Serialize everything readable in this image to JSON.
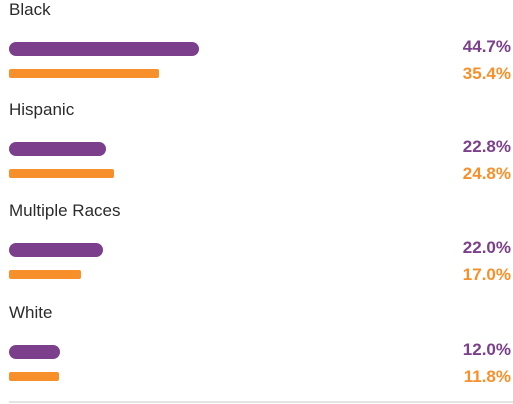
{
  "chart_data": {
    "type": "bar",
    "orientation": "horizontal",
    "categories": [
      "Black",
      "Hispanic",
      "Multiple Races",
      "White"
    ],
    "series": [
      {
        "values": [
          44.7,
          22.8,
          22.0,
          12.0
        ],
        "color": "#7b3f8c",
        "labels": [
          "44.7%",
          "22.8%",
          "22.0%",
          "12.0%"
        ]
      },
      {
        "values": [
          35.4,
          24.8,
          17.0,
          11.8
        ],
        "color": "#f7902a",
        "labels": [
          "35.4%",
          "24.8%",
          "17.0%",
          "11.8%"
        ]
      }
    ],
    "grid": false,
    "legend": "none"
  }
}
